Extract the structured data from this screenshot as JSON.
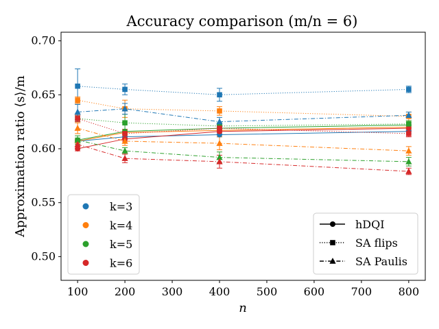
{
  "chart_data": {
    "type": "line",
    "title": "Accuracy comparison (m/n = 6)",
    "xlabel": "n",
    "ylabel": "Approximation ratio ⟨s⟩/m",
    "x": [
      100,
      200,
      400,
      800
    ],
    "xlim": [
      65,
      835
    ],
    "ylim": [
      0.478,
      0.708
    ],
    "xticks": [
      100,
      200,
      300,
      400,
      500,
      600,
      700,
      800
    ],
    "yticks": [
      "0.50",
      "0.55",
      "0.60",
      "0.65",
      "0.70"
    ],
    "grid": false,
    "legend_k_position": "lower-left",
    "legend_method_position": "lower-right",
    "k_legend": [
      {
        "label": "k=3",
        "color": "#1f77b4"
      },
      {
        "label": "k=4",
        "color": "#ff7f0e"
      },
      {
        "label": "k=5",
        "color": "#2ca02c"
      },
      {
        "label": "k=6",
        "color": "#d62728"
      }
    ],
    "method_legend": [
      {
        "label": "hDQI",
        "marker": "circle",
        "dash": "solid"
      },
      {
        "label": "SA flips",
        "marker": "square",
        "dash": "dotted"
      },
      {
        "label": "SA Paulis",
        "marker": "triangle",
        "dash": "dashdot"
      }
    ],
    "series": [
      {
        "k": "k=3",
        "method": "hDQI",
        "color": "#1f77b4",
        "values": [
          0.607,
          0.611,
          0.613,
          0.616
        ],
        "errors": [
          0.002,
          0.002,
          0.002,
          0.002
        ]
      },
      {
        "k": "k=4",
        "method": "hDQI",
        "color": "#ff7f0e",
        "values": [
          0.607,
          0.615,
          0.617,
          0.62
        ],
        "errors": [
          0.002,
          0.002,
          0.002,
          0.002
        ]
      },
      {
        "k": "k=5",
        "method": "hDQI",
        "color": "#2ca02c",
        "values": [
          0.608,
          0.616,
          0.619,
          0.622
        ],
        "errors": [
          0.002,
          0.002,
          0.002,
          0.002
        ]
      },
      {
        "k": "k=6",
        "method": "hDQI",
        "color": "#d62728",
        "values": [
          0.6,
          0.609,
          0.616,
          0.619
        ],
        "errors": [
          0.002,
          0.002,
          0.002,
          0.002
        ]
      },
      {
        "k": "k=3",
        "method": "SA flips",
        "color": "#1f77b4",
        "values": [
          0.658,
          0.655,
          0.65,
          0.655
        ],
        "errors": [
          0.016,
          0.005,
          0.006,
          0.003
        ]
      },
      {
        "k": "k=4",
        "method": "SA flips",
        "color": "#ff7f0e",
        "values": [
          0.645,
          0.637,
          0.635,
          0.63
        ],
        "errors": [
          0.003,
          0.008,
          0.004,
          0.004
        ]
      },
      {
        "k": "k=5",
        "method": "SA flips",
        "color": "#2ca02c",
        "values": [
          0.628,
          0.624,
          0.621,
          0.623
        ],
        "errors": [
          0.003,
          0.008,
          0.003,
          0.003
        ]
      },
      {
        "k": "k=6",
        "method": "SA flips",
        "color": "#d62728",
        "values": [
          0.628,
          0.614,
          0.619,
          0.614
        ],
        "errors": [
          0.003,
          0.004,
          0.003,
          0.003
        ]
      },
      {
        "k": "k=3",
        "method": "SA Paulis",
        "color": "#1f77b4",
        "values": [
          0.634,
          0.637,
          0.625,
          0.631
        ],
        "errors": [
          0.007,
          0.005,
          0.004,
          0.003
        ]
      },
      {
        "k": "k=4",
        "method": "SA Paulis",
        "color": "#ff7f0e",
        "values": [
          0.619,
          0.607,
          0.605,
          0.598
        ],
        "errors": [
          0.005,
          0.004,
          0.006,
          0.004
        ]
      },
      {
        "k": "k=5",
        "method": "SA Paulis",
        "color": "#2ca02c",
        "values": [
          0.608,
          0.598,
          0.592,
          0.588
        ],
        "errors": [
          0.004,
          0.003,
          0.005,
          0.004
        ]
      },
      {
        "k": "k=6",
        "method": "SA Paulis",
        "color": "#d62728",
        "values": [
          0.604,
          0.591,
          0.588,
          0.579
        ],
        "errors": [
          0.004,
          0.004,
          0.006,
          0.003
        ]
      }
    ]
  }
}
